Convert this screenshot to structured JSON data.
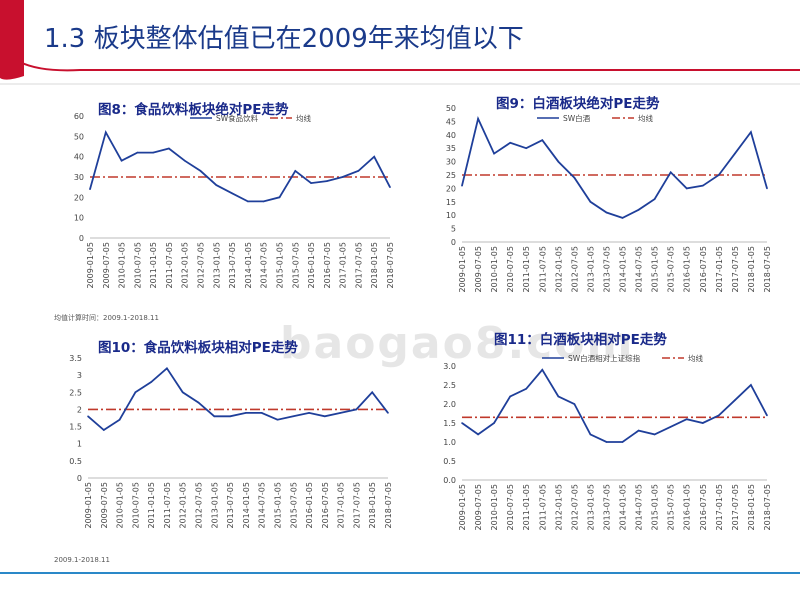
{
  "slide": {
    "title": "1.3 板块整体估值已在2009年来均值以下",
    "note_top": "均值计算时间：2009.1-2018.11",
    "note_bottom": "2009.1-2018.11",
    "watermark": "baogao8.com"
  },
  "colors": {
    "title": "#1a3a8a",
    "series_line": "#1f3f9a",
    "avg_line": "#c0392b",
    "header_red": "#c8102e",
    "bottom_rule": "#2a88c8"
  },
  "chart_data": [
    {
      "type": "line",
      "title": "图8：食品饮料板块绝对PE走势",
      "legend": [
        "SW食品饮料",
        "均线"
      ],
      "x": [
        "2009-01-05",
        "2009-07-05",
        "2010-01-05",
        "2010-07-05",
        "2011-01-05",
        "2011-07-05",
        "2012-01-05",
        "2012-07-05",
        "2013-01-05",
        "2013-07-05",
        "2014-01-05",
        "2014-07-05",
        "2015-01-05",
        "2015-07-05",
        "2016-01-05",
        "2016-07-05",
        "2017-01-05",
        "2017-07-05",
        "2018-01-05",
        "2018-07-05"
      ],
      "values": [
        24,
        52,
        38,
        42,
        42,
        44,
        38,
        33,
        26,
        22,
        18,
        18,
        20,
        33,
        27,
        28,
        30,
        33,
        40,
        25
      ],
      "average": 30,
      "ylim": [
        0,
        60
      ],
      "yticks": [
        0,
        10,
        20,
        30,
        40,
        50,
        60
      ]
    },
    {
      "type": "line",
      "title": "图9：白酒板块绝对PE走势",
      "legend": [
        "SW白酒",
        "均线"
      ],
      "x": [
        "2009-01-05",
        "2009-07-05",
        "2010-01-05",
        "2010-07-05",
        "2011-01-05",
        "2011-07-05",
        "2012-01-05",
        "2012-07-05",
        "2013-01-05",
        "2013-07-05",
        "2014-01-05",
        "2014-07-05",
        "2015-01-05",
        "2015-07-05",
        "2016-01-05",
        "2016-07-05",
        "2017-01-05",
        "2017-07-05",
        "2018-01-05",
        "2018-07-05"
      ],
      "values": [
        21,
        46,
        33,
        37,
        35,
        38,
        30,
        24,
        15,
        11,
        9,
        12,
        16,
        26,
        20,
        21,
        25,
        33,
        41,
        20
      ],
      "average": 25,
      "ylim": [
        0,
        50
      ],
      "yticks": [
        0,
        5,
        10,
        15,
        20,
        25,
        30,
        35,
        40,
        45,
        50
      ]
    },
    {
      "type": "line",
      "title": "图10：食品饮料板块相对PE走势",
      "legend": [
        "SW食品饮料相对上证综指",
        "均线"
      ],
      "x": [
        "2009-01-05",
        "2009-07-05",
        "2010-01-05",
        "2010-07-05",
        "2011-01-05",
        "2011-07-05",
        "2012-01-05",
        "2012-07-05",
        "2013-01-05",
        "2013-07-05",
        "2014-01-05",
        "2014-07-05",
        "2015-01-05",
        "2015-07-05",
        "2016-01-05",
        "2016-07-05",
        "2017-01-05",
        "2017-07-05",
        "2018-01-05",
        "2018-07-05"
      ],
      "values": [
        1.8,
        1.4,
        1.7,
        2.5,
        2.8,
        3.2,
        2.5,
        2.2,
        1.8,
        1.8,
        1.9,
        1.9,
        1.7,
        1.8,
        1.9,
        1.8,
        1.9,
        2.0,
        2.5,
        1.9
      ],
      "average": 2.0,
      "ylim": [
        0,
        3.5
      ],
      "yticks": [
        0,
        0.5,
        1,
        1.5,
        2,
        2.5,
        3,
        3.5
      ]
    },
    {
      "type": "line",
      "title": "图11：白酒板块相对PE走势",
      "legend": [
        "SW白酒相对上证综指",
        "均线"
      ],
      "x": [
        "2009-01-05",
        "2009-07-05",
        "2010-01-05",
        "2010-07-05",
        "2011-01-05",
        "2011-07-05",
        "2012-01-05",
        "2012-07-05",
        "2013-01-05",
        "2013-07-05",
        "2014-01-05",
        "2014-07-05",
        "2015-01-05",
        "2015-07-05",
        "2016-01-05",
        "2016-07-05",
        "2017-01-05",
        "2017-07-05",
        "2018-01-05",
        "2018-07-05"
      ],
      "values": [
        1.5,
        1.2,
        1.5,
        2.2,
        2.4,
        2.9,
        2.2,
        2.0,
        1.2,
        1.0,
        1.0,
        1.3,
        1.2,
        1.4,
        1.6,
        1.5,
        1.7,
        2.1,
        2.5,
        1.7
      ],
      "average": 1.65,
      "ylim": [
        0,
        3.0
      ],
      "yticks": [
        "0.0",
        "0.5",
        "1.0",
        "1.5",
        "2.0",
        "2.5",
        "3.0"
      ]
    }
  ]
}
